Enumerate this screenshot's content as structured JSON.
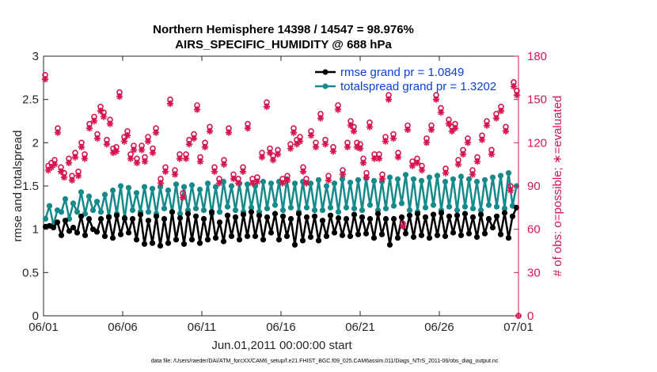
{
  "chart_data": {
    "type": "line",
    "title": "Northern Hemisphere 14398 / 14547 = 98.976%",
    "subtitle": "AIRS_SPECIFIC_HUMIDITY @ 688 hPa",
    "xlabel": "Jun.01,2011 00:00:00 start",
    "ylabel": "rmse and totalspread",
    "ylabel_right": "# of obs: o=possible; ∗=evaluated",
    "footnote": "data file: /Users/raeder/DAI/ATM_forcXX/CAM6_setup/f.e21.FHIST_BGC.f09_025.CAM6assim.011/Diags_NTrS_2011-06/obs_diag_output.nc",
    "xlim": [
      0,
      30
    ],
    "ylim": [
      0,
      3
    ],
    "ylim_right": [
      0,
      180
    ],
    "xticks": [
      0,
      5,
      10,
      15,
      20,
      25,
      30
    ],
    "xtick_labels": [
      "06/01",
      "06/06",
      "06/11",
      "06/16",
      "06/21",
      "06/26",
      "07/01"
    ],
    "yticks": [
      0,
      0.5,
      1,
      1.5,
      2,
      2.5,
      3
    ],
    "ytick_labels": [
      "0",
      "0.5",
      "1",
      "1.5",
      "2",
      "2.5",
      "3"
    ],
    "yticks_right": [
      0,
      30,
      60,
      90,
      120,
      150,
      180
    ],
    "ytick_labels_right": [
      "0",
      "30",
      "60",
      "90",
      "120",
      "150",
      "180"
    ],
    "legend": [
      {
        "name": "rmse grand pr = 1.0849",
        "color": "#000000"
      },
      {
        "name": "totalspread grand pr = 1.3202",
        "color": "#168a8a"
      }
    ],
    "legend_position": "top-right",
    "grid": false,
    "series": [
      {
        "name": "rmse",
        "color": "#000000",
        "x": [
          0.125,
          0.375,
          0.625,
          0.875,
          1.125,
          1.375,
          1.625,
          1.875,
          2.125,
          2.375,
          2.625,
          2.875,
          3.125,
          3.375,
          3.625,
          3.875,
          4.125,
          4.375,
          4.625,
          4.875,
          5.125,
          5.375,
          5.625,
          5.875,
          6.125,
          6.375,
          6.625,
          6.875,
          7.125,
          7.375,
          7.625,
          7.875,
          8.125,
          8.375,
          8.625,
          8.875,
          9.125,
          9.375,
          9.625,
          9.875,
          10.125,
          10.375,
          10.625,
          10.875,
          11.125,
          11.375,
          11.625,
          11.875,
          12.125,
          12.375,
          12.625,
          12.875,
          13.125,
          13.375,
          13.625,
          13.875,
          14.125,
          14.375,
          14.625,
          14.875,
          15.125,
          15.375,
          15.625,
          15.875,
          16.125,
          16.375,
          16.625,
          16.875,
          17.125,
          17.375,
          17.625,
          17.875,
          18.125,
          18.375,
          18.625,
          18.875,
          19.125,
          19.375,
          19.625,
          19.875,
          20.125,
          20.375,
          20.625,
          20.875,
          21.125,
          21.375,
          21.625,
          21.875,
          22.125,
          22.375,
          22.625,
          22.875,
          23.125,
          23.375,
          23.625,
          23.875,
          24.125,
          24.375,
          24.625,
          24.875,
          25.125,
          25.375,
          25.625,
          25.875,
          26.125,
          26.375,
          26.625,
          26.875,
          27.125,
          27.375,
          27.625,
          27.875,
          28.125,
          28.375,
          28.625,
          28.875,
          29.125,
          29.375,
          29.625,
          29.875
        ],
        "values": [
          1.03,
          1.04,
          1.02,
          1.08,
          0.93,
          1.1,
          0.98,
          1.02,
          0.96,
          1.15,
          0.93,
          1.12,
          1.0,
          0.97,
          1.12,
          0.92,
          1.14,
          0.9,
          1.16,
          0.94,
          1.13,
          0.96,
          1.12,
          0.88,
          1.17,
          0.83,
          1.1,
          0.84,
          1.15,
          0.81,
          1.12,
          0.84,
          1.2,
          0.88,
          1.13,
          0.83,
          1.18,
          0.88,
          1.15,
          0.84,
          1.12,
          0.88,
          1.2,
          0.9,
          1.08,
          0.86,
          1.16,
          0.92,
          1.14,
          0.88,
          1.17,
          0.92,
          1.2,
          0.92,
          1.16,
          0.88,
          1.14,
          0.96,
          1.18,
          0.88,
          1.15,
          0.92,
          1.12,
          0.82,
          1.18,
          0.87,
          1.14,
          0.91,
          1.15,
          0.87,
          1.1,
          0.92,
          1.16,
          0.96,
          1.13,
          0.93,
          1.12,
          0.92,
          1.17,
          0.94,
          1.14,
          0.95,
          1.12,
          0.9,
          1.18,
          0.94,
          1.12,
          0.82,
          1.12,
          0.9,
          1.14,
          0.95,
          1.16,
          0.91,
          1.18,
          0.93,
          1.14,
          0.9,
          1.17,
          0.93,
          1.19,
          0.92,
          1.15,
          0.96,
          1.16,
          0.93,
          1.18,
          0.95,
          1.14,
          0.91,
          1.17,
          0.95,
          1.12,
          1.02,
          1.15,
          0.94,
          1.19,
          0.9,
          1.15,
          1.25
        ]
      },
      {
        "name": "totalspread",
        "color": "#168a8a",
        "x": [
          0.125,
          0.375,
          0.625,
          0.875,
          1.125,
          1.375,
          1.625,
          1.875,
          2.125,
          2.375,
          2.625,
          2.875,
          3.125,
          3.375,
          3.625,
          3.875,
          4.125,
          4.375,
          4.625,
          4.875,
          5.125,
          5.375,
          5.625,
          5.875,
          6.125,
          6.375,
          6.625,
          6.875,
          7.125,
          7.375,
          7.625,
          7.875,
          8.125,
          8.375,
          8.625,
          8.875,
          9.125,
          9.375,
          9.625,
          9.875,
          10.125,
          10.375,
          10.625,
          10.875,
          11.125,
          11.375,
          11.625,
          11.875,
          12.125,
          12.375,
          12.625,
          12.875,
          13.125,
          13.375,
          13.625,
          13.875,
          14.125,
          14.375,
          14.625,
          14.875,
          15.125,
          15.375,
          15.625,
          15.875,
          16.125,
          16.375,
          16.625,
          16.875,
          17.125,
          17.375,
          17.625,
          17.875,
          18.125,
          18.375,
          18.625,
          18.875,
          19.125,
          19.375,
          19.625,
          19.875,
          20.125,
          20.375,
          20.625,
          20.875,
          21.125,
          21.375,
          21.625,
          21.875,
          22.125,
          22.375,
          22.625,
          22.875,
          23.125,
          23.375,
          23.625,
          23.875,
          24.125,
          24.375,
          24.625,
          24.875,
          25.125,
          25.375,
          25.625,
          25.875,
          26.125,
          26.375,
          26.625,
          26.875,
          27.125,
          27.375,
          27.625,
          27.875,
          28.125,
          28.375,
          28.625,
          28.875,
          29.125,
          29.375,
          29.625,
          29.875
        ],
        "values": [
          1.12,
          1.27,
          1.05,
          1.22,
          1.2,
          1.35,
          1.12,
          1.3,
          1.2,
          1.43,
          1.18,
          1.38,
          1.22,
          1.32,
          1.2,
          1.4,
          1.15,
          1.45,
          1.18,
          1.5,
          1.12,
          1.48,
          1.22,
          1.42,
          1.2,
          1.49,
          1.2,
          1.47,
          1.18,
          1.49,
          1.24,
          1.45,
          1.2,
          1.52,
          1.18,
          1.49,
          1.22,
          1.51,
          1.24,
          1.46,
          1.22,
          1.53,
          1.18,
          1.49,
          1.2,
          1.55,
          1.26,
          1.5,
          1.22,
          1.53,
          1.2,
          1.52,
          1.25,
          1.5,
          1.2,
          1.55,
          1.24,
          1.53,
          1.28,
          1.55,
          1.22,
          1.58,
          1.25,
          1.53,
          1.2,
          1.55,
          1.25,
          1.53,
          1.22,
          1.57,
          1.22,
          1.5,
          1.25,
          1.53,
          1.2,
          1.58,
          1.25,
          1.54,
          1.24,
          1.57,
          1.22,
          1.59,
          1.28,
          1.56,
          1.22,
          1.55,
          1.24,
          1.6,
          1.27,
          1.58,
          1.3,
          1.63,
          1.22,
          1.58,
          1.2,
          1.56,
          1.25,
          1.6,
          1.28,
          1.62,
          1.22,
          1.55,
          1.26,
          1.58,
          1.22,
          1.61,
          1.26,
          1.58,
          1.24,
          1.55,
          1.22,
          1.57,
          1.28,
          1.6,
          1.26,
          1.62,
          1.24,
          1.65,
          1.27,
          1.5
        ]
      },
      {
        "name": "obs possible",
        "color": "#d6154f",
        "marker": "o",
        "axis": "right",
        "x": [
          0.1,
          0.3,
          0.5,
          0.7,
          0.9,
          1.1,
          1.3,
          1.6,
          1.8,
          2.0,
          2.2,
          2.4,
          2.6,
          2.9,
          3.2,
          3.4,
          3.6,
          3.8,
          4.0,
          4.2,
          4.4,
          4.6,
          4.8,
          5.1,
          5.3,
          5.5,
          5.7,
          5.9,
          6.2,
          6.4,
          6.6,
          6.9,
          7.1,
          7.4,
          7.7,
          8.0,
          8.3,
          8.6,
          8.8,
          9.0,
          9.2,
          9.5,
          9.7,
          9.9,
          10.2,
          10.5,
          10.8,
          11.1,
          11.4,
          11.7,
          12.0,
          12.3,
          12.6,
          12.9,
          13.2,
          13.5,
          13.8,
          14.1,
          14.3,
          14.5,
          14.8,
          15.1,
          15.4,
          15.6,
          15.8,
          16.0,
          16.2,
          16.4,
          16.6,
          16.9,
          17.2,
          17.5,
          17.8,
          18.0,
          18.3,
          18.6,
          18.9,
          19.2,
          19.4,
          19.6,
          19.8,
          20.0,
          20.2,
          20.4,
          20.6,
          20.9,
          21.2,
          21.4,
          21.6,
          21.8,
          22.1,
          22.4,
          22.7,
          23.0,
          23.3,
          23.6,
          23.9,
          24.2,
          24.5,
          24.8,
          25.1,
          25.4,
          25.6,
          25.8,
          26.0,
          26.2,
          26.5,
          26.8,
          27.1,
          27.4,
          27.7,
          28.0,
          28.3,
          28.6,
          28.9,
          29.2,
          29.5,
          29.7,
          29.9
        ],
        "values": [
          167,
          104,
          106,
          108,
          130,
          103,
          99,
          109,
          97,
          113,
          100,
          120,
          112,
          133,
          138,
          126,
          145,
          141,
          122,
          136,
          116,
          117,
          155,
          124,
          128,
          112,
          118,
          109,
          118,
          110,
          124,
          116,
          130,
          95,
          103,
          150,
          101,
          112,
          85,
          112,
          122,
          126,
          146,
          110,
          120,
          131,
          103,
          95,
          108,
          130,
          98,
          95,
          103,
          133,
          95,
          96,
          113,
          148,
          116,
          111,
          115,
          95,
          97,
          119,
          130,
          122,
          124,
          103,
          95,
          128,
          120,
          140,
          122,
          97,
          117,
          146,
          101,
          120,
          135,
          131,
          120,
          119,
          109,
          99,
          134,
          112,
          112,
          98,
          124,
          153,
          126,
          113,
          64,
          132,
          107,
          109,
          104,
          123,
          132,
          153,
          144,
          102,
          136,
          131,
          133,
          108,
          115,
          123,
          101,
          110,
          125,
          135,
          115,
          140,
          145,
          131,
          90,
          162,
          156
        ],
        "draw_mode": "ring"
      },
      {
        "name": "obs evaluated",
        "color": "#d6154f",
        "marker": "*",
        "axis": "right",
        "x": [
          0.1,
          0.3,
          0.5,
          0.7,
          0.9,
          1.1,
          1.3,
          1.6,
          1.8,
          2.0,
          2.2,
          2.4,
          2.6,
          2.9,
          3.2,
          3.4,
          3.6,
          3.8,
          4.0,
          4.2,
          4.4,
          4.6,
          4.8,
          5.1,
          5.3,
          5.5,
          5.7,
          5.9,
          6.2,
          6.4,
          6.6,
          6.9,
          7.1,
          7.4,
          7.7,
          8.0,
          8.3,
          8.6,
          8.8,
          9.0,
          9.2,
          9.5,
          9.7,
          9.9,
          10.2,
          10.5,
          10.8,
          11.1,
          11.4,
          11.7,
          12.0,
          12.3,
          12.6,
          12.9,
          13.2,
          13.5,
          13.8,
          14.1,
          14.3,
          14.5,
          14.8,
          15.1,
          15.4,
          15.6,
          15.8,
          16.0,
          16.2,
          16.4,
          16.6,
          16.9,
          17.2,
          17.5,
          17.8,
          18.0,
          18.3,
          18.6,
          18.9,
          19.2,
          19.4,
          19.6,
          19.8,
          20.0,
          20.2,
          20.4,
          20.6,
          20.9,
          21.2,
          21.4,
          21.6,
          21.8,
          22.1,
          22.4,
          22.7,
          23.0,
          23.3,
          23.6,
          23.9,
          24.2,
          24.5,
          24.8,
          25.1,
          25.4,
          25.6,
          25.8,
          26.0,
          26.2,
          26.5,
          26.8,
          27.1,
          27.4,
          27.7,
          28.0,
          28.3,
          28.6,
          28.9,
          29.2,
          29.5,
          29.7,
          29.9
        ],
        "values": [
          164,
          101,
          103,
          105,
          127,
          100,
          96,
          106,
          94,
          110,
          97,
          117,
          109,
          130,
          135,
          123,
          142,
          138,
          119,
          133,
          113,
          114,
          152,
          121,
          125,
          109,
          115,
          106,
          115,
          107,
          121,
          113,
          127,
          92,
          100,
          147,
          98,
          109,
          82,
          109,
          119,
          123,
          143,
          107,
          117,
          128,
          100,
          92,
          105,
          127,
          95,
          92,
          100,
          130,
          92,
          93,
          110,
          145,
          113,
          108,
          112,
          92,
          94,
          116,
          127,
          119,
          121,
          100,
          92,
          125,
          117,
          137,
          119,
          94,
          114,
          143,
          98,
          117,
          132,
          128,
          117,
          116,
          106,
          96,
          131,
          109,
          109,
          95,
          121,
          150,
          123,
          110,
          62,
          129,
          104,
          106,
          101,
          120,
          129,
          150,
          141,
          99,
          133,
          128,
          130,
          105,
          112,
          120,
          98,
          107,
          122,
          132,
          112,
          137,
          142,
          128,
          87,
          159,
          153
        ]
      }
    ]
  }
}
